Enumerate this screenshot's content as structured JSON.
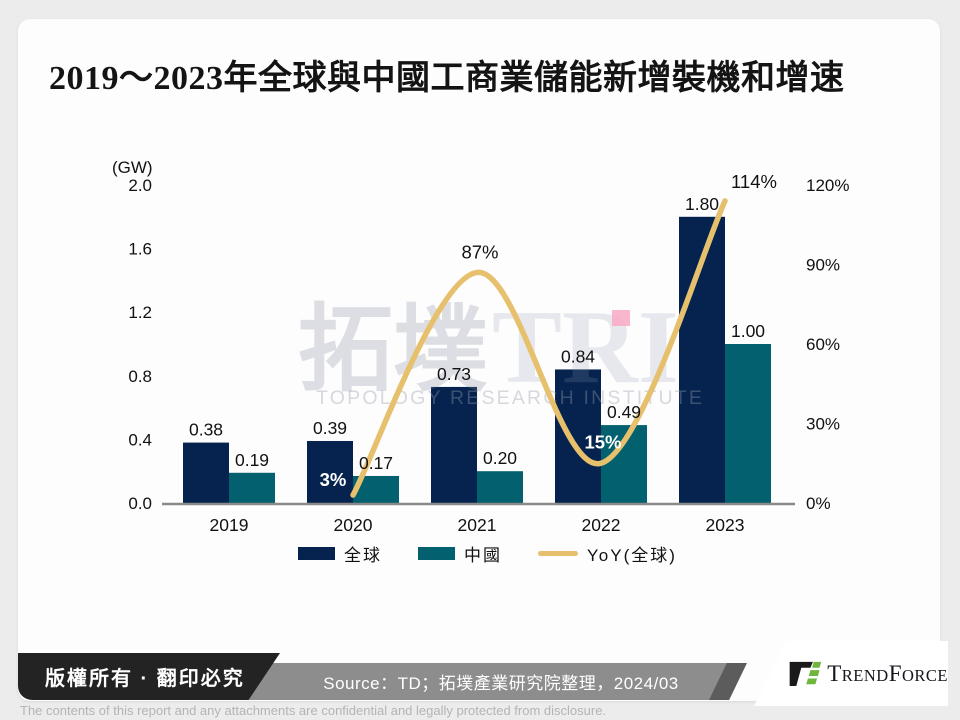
{
  "title": "2019～2023年全球與中國工商業儲能新增裝機和增速",
  "chart_data": {
    "type": "combo_bar_line",
    "title": "2019～2023年全球與中國工商業儲能新增裝機和增速",
    "categories": [
      "2019",
      "2020",
      "2021",
      "2022",
      "2023"
    ],
    "series": [
      {
        "key": "global",
        "name": "全球",
        "type": "bar",
        "axis": "left",
        "unit": "GW",
        "color": "#05234e",
        "values": [
          0.38,
          0.39,
          0.73,
          0.84,
          1.8
        ],
        "labels": [
          "0.38",
          "0.39",
          "0.73",
          "0.84",
          "1.80"
        ]
      },
      {
        "key": "china",
        "name": "中國",
        "type": "bar",
        "axis": "left",
        "unit": "GW",
        "color": "#02606f",
        "values": [
          0.19,
          0.17,
          0.2,
          0.49,
          1.0
        ],
        "labels": [
          "0.19",
          "0.17",
          "0.20",
          "0.49",
          "1.00"
        ]
      },
      {
        "key": "yoy",
        "name": "YoY(全球)",
        "type": "line",
        "axis": "right",
        "unit": "%",
        "color": "#e6c06c",
        "values": [
          null,
          3,
          87,
          15,
          114
        ],
        "labels": [
          null,
          "3%",
          "87%",
          "15%",
          "114%"
        ],
        "label_colors": [
          null,
          "#ffffff",
          "#111111",
          "#ffffff",
          "#111111"
        ]
      }
    ],
    "left_axis": {
      "unit_label": "(GW)",
      "min": 0,
      "max": 2.0,
      "ticks": [
        "2.0",
        "1.6",
        "1.2",
        "0.8",
        "0.4",
        "0.0"
      ]
    },
    "right_axis": {
      "min": 0,
      "max": 120,
      "ticks": [
        "120%",
        "90%",
        "60%",
        "30%",
        "0%"
      ]
    },
    "grid": false,
    "legend_position": "bottom"
  },
  "legend": [
    {
      "label": "全球",
      "swatch": "bar",
      "color": "#05234e"
    },
    {
      "label": "中國",
      "swatch": "bar",
      "color": "#02606f"
    },
    {
      "label": "YoY(全球)",
      "swatch": "line",
      "color": "#e6c06c"
    }
  ],
  "watermark": {
    "brand_cjk": "拓墣",
    "brand_latin": "TRI",
    "subtitle": "TOPOLOGY RESEARCH INSTITUTE",
    "pink": "#f8a9c4"
  },
  "footer": {
    "copyright": "版權所有 · 翻印必究",
    "source": "Source：TD；拓墣產業研究院整理，2024/03",
    "brand_parts": [
      "T",
      "REND",
      "F",
      "ORCE"
    ],
    "disclaimer": "The contents of this report and any attachments are confidential and legally protected from disclosure."
  },
  "colors": {
    "bar_global": "#05234e",
    "bar_china": "#02606f",
    "yoy_line": "#e6c06c",
    "axis_line": "#8a8a8a",
    "text": "#111111",
    "brand_green": "#6fb53e",
    "brand_black": "#1a1a1a",
    "watermark_pink": "#f8a9c4"
  }
}
